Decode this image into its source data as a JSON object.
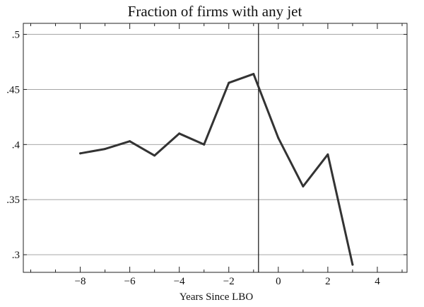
{
  "chart_data": {
    "type": "line",
    "title": "Fraction of firms with any jet",
    "xlabel": "Years Since LBO",
    "ylabel": "",
    "xlim": [
      -10.3,
      5.2
    ],
    "ylim": [
      0.284,
      0.51
    ],
    "xticks": [
      -8,
      -6,
      -4,
      -2,
      0,
      2,
      4
    ],
    "xtick_labels": [
      "−8",
      "−6",
      "−4",
      "−2",
      "0",
      "2",
      "4"
    ],
    "x_minor_ticks": [
      -10,
      -9,
      -7,
      -5,
      -3,
      -1,
      1,
      3,
      5
    ],
    "yticks": [
      0.3,
      0.35,
      0.4,
      0.45,
      0.5
    ],
    "ytick_labels": [
      ".3",
      ".35",
      ".4",
      ".45",
      ".5"
    ],
    "grid": "horizontal",
    "reference_line_x": -0.8,
    "series": [
      {
        "x": [
          -8,
          -7,
          -6,
          -5,
          -4,
          -3,
          -2,
          -1,
          0,
          1,
          2,
          3
        ],
        "values": [
          0.392,
          0.396,
          0.403,
          0.39,
          0.41,
          0.4,
          0.456,
          0.464,
          0.406,
          0.362,
          0.391,
          0.291
        ]
      }
    ]
  }
}
